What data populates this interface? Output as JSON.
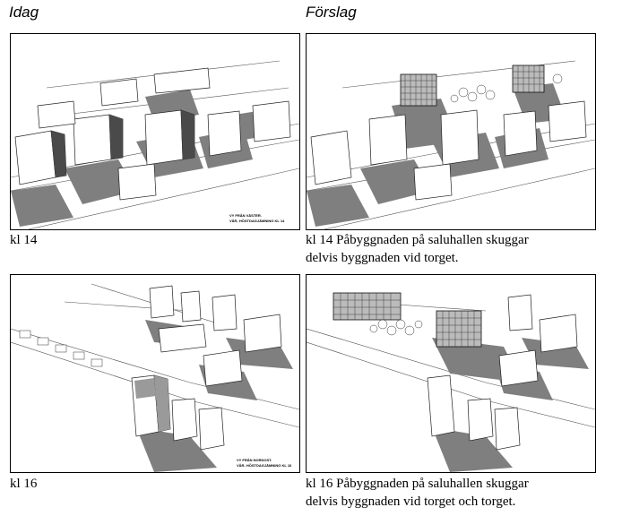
{
  "headers": {
    "left": "Idag",
    "right": "Förslag"
  },
  "panels": {
    "top_left": {
      "caption": "kl 14",
      "stamp_line1": "VY FRÅN VÄSTER.",
      "stamp_line2": "VÅR- HÖSTDAGJÄMNING KL 14"
    },
    "top_right": {
      "caption_line1": "kl 14 Påbyggnaden på saluhallen skuggar",
      "caption_line2": "delvis byggnaden vid torget."
    },
    "bottom_left": {
      "caption": "kl 16",
      "stamp_line1": "VY FRÅN NORDOST.",
      "stamp_line2": "VÅR- HÖSTDAGJÄMNING KL 16"
    },
    "bottom_right": {
      "caption_line1": "kl 16 Påbyggnaden på saluhallen skuggar",
      "caption_line2": "delvis byggnaden vid torget och torget."
    }
  }
}
